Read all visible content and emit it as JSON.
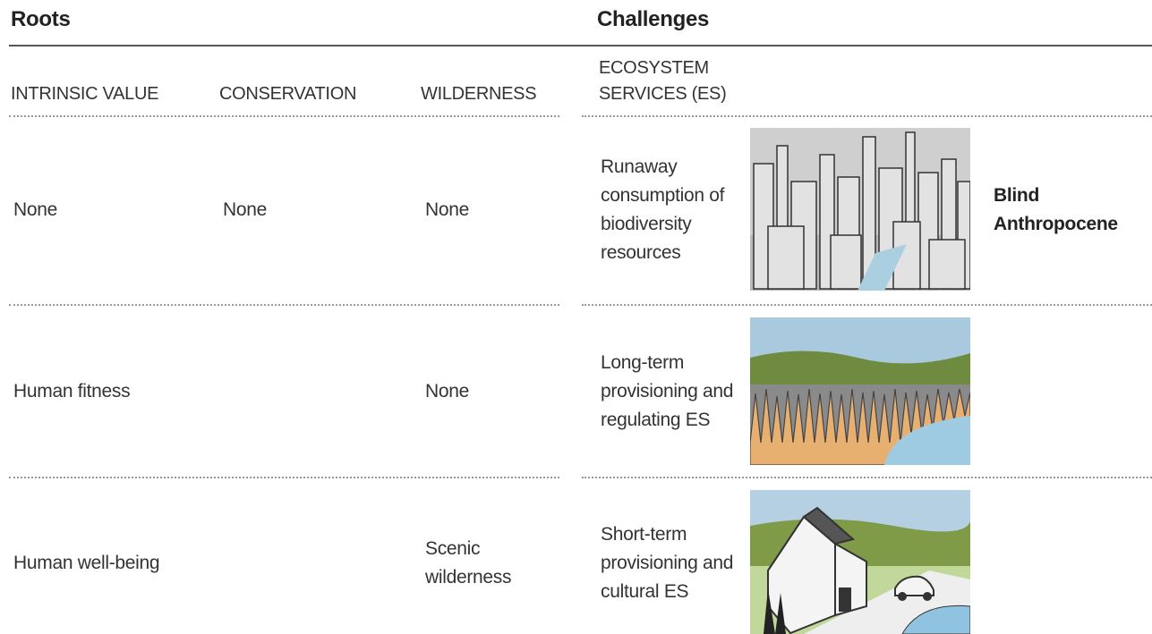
{
  "header": {
    "left_title": "Roots",
    "right_title": "Challenges"
  },
  "columns": [
    "INTRINSIC VALUE",
    "CONSERVATION",
    "WILDERNESS",
    "ECOSYSTEM SERVICES (ES)"
  ],
  "rows": [
    {
      "intrinsic_value": "None",
      "conservation": "None",
      "wilderness": "None",
      "ecosystem_services": "Runaway consumption of biodiversity resources",
      "scenario": "Blind Anthropocene"
    },
    {
      "intrinsic_value": "Human fitness",
      "wilderness": "None",
      "ecosystem_services": "Long-term provisioning and regulating ES"
    },
    {
      "intrinsic_value": "Human well-being",
      "wilderness": "Scenic wilderness",
      "ecosystem_services": "Short-term provisioning and cultural ES"
    }
  ]
}
